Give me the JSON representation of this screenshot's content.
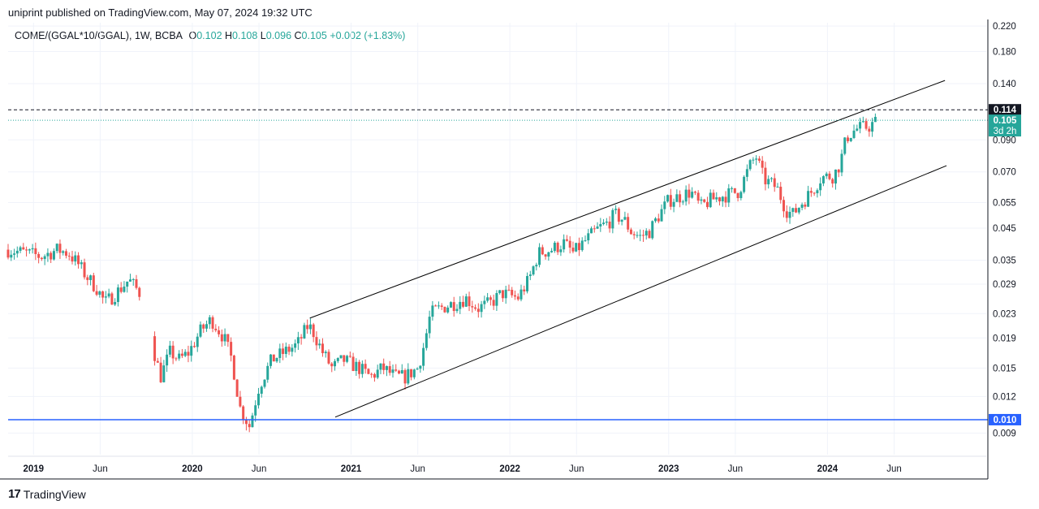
{
  "header": {
    "published_text": "uniprint published on TradingView.com, May 07, 2024 19:32 UTC",
    "symbol": "COME/(GGAL*10/GGAL), 1W, BCBA",
    "o_label": "O",
    "o_value": "0.102",
    "h_label": "H",
    "h_value": "0.108",
    "l_label": "L",
    "l_value": "0.096",
    "c_label": "C",
    "c_value": "0.105",
    "change": "+0.002 (+1.83%)"
  },
  "footer": {
    "brand": "TradingView",
    "logo": "17"
  },
  "colors": {
    "up": "#26a69a",
    "down": "#ef5350",
    "grid": "#f0f3fa",
    "support_line": "#2962ff",
    "channel": "#000000",
    "price_badge": "#26a69a"
  },
  "chart_data": {
    "type": "candlestick",
    "title": "COME/(GGAL*10/GGAL), 1W, BCBA",
    "y_scale": "log",
    "ylim": [
      0.0076,
      0.2258
    ],
    "y_ticks": [
      "0.220",
      "0.180",
      "0.140",
      "0.114",
      "0.105",
      "0.090",
      "0.070",
      "0.055",
      "0.045",
      "0.035",
      "0.029",
      "0.023",
      "0.019",
      "0.015",
      "0.012",
      "0.010",
      "0.009"
    ],
    "y_tick_values": [
      0.22,
      0.18,
      0.14,
      0.114,
      0.105,
      0.09,
      0.07,
      0.055,
      0.045,
      0.035,
      0.029,
      0.023,
      0.019,
      0.015,
      0.012,
      0.01,
      0.009
    ],
    "x_ticks": [
      {
        "label": "2019",
        "t": 2019.0,
        "bold": true
      },
      {
        "label": "Jun",
        "t": 2019.42,
        "bold": false
      },
      {
        "label": "2020",
        "t": 2020.0,
        "bold": true
      },
      {
        "label": "Jun",
        "t": 2020.42,
        "bold": false
      },
      {
        "label": "2021",
        "t": 2021.0,
        "bold": true
      },
      {
        "label": "Jun",
        "t": 2021.42,
        "bold": false
      },
      {
        "label": "2022",
        "t": 2022.0,
        "bold": true
      },
      {
        "label": "Jun",
        "t": 2022.42,
        "bold": false
      },
      {
        "label": "2023",
        "t": 2023.0,
        "bold": true
      },
      {
        "label": "Jun",
        "t": 2023.42,
        "bold": false
      },
      {
        "label": "2024",
        "t": 2024.0,
        "bold": true
      },
      {
        "label": "Jun",
        "t": 2024.42,
        "bold": false
      }
    ],
    "x_range": [
      2018.84,
      2025.0
    ],
    "price_path": [
      [
        2018.84,
        0.038
      ],
      [
        2018.95,
        0.037
      ],
      [
        2019.05,
        0.036
      ],
      [
        2019.15,
        0.038
      ],
      [
        2019.22,
        0.037
      ],
      [
        2019.28,
        0.034
      ],
      [
        2019.33,
        0.031
      ],
      [
        2019.4,
        0.028
      ],
      [
        2019.45,
        0.025
      ],
      [
        2019.52,
        0.027
      ],
      [
        2019.6,
        0.03
      ],
      [
        2019.67,
        0.027
      ],
      [
        2019.76,
        0.017
      ],
      [
        2019.8,
        0.014
      ],
      [
        2019.86,
        0.017
      ],
      [
        2019.92,
        0.016
      ],
      [
        2019.98,
        0.017
      ],
      [
        2020.05,
        0.02
      ],
      [
        2020.12,
        0.022
      ],
      [
        2020.2,
        0.019
      ],
      [
        2020.25,
        0.016
      ],
      [
        2020.3,
        0.011
      ],
      [
        2020.36,
        0.0095
      ],
      [
        2020.42,
        0.013
      ],
      [
        2020.5,
        0.016
      ],
      [
        2020.58,
        0.017
      ],
      [
        2020.66,
        0.018
      ],
      [
        2020.73,
        0.021
      ],
      [
        2020.76,
        0.02
      ],
      [
        2020.82,
        0.017
      ],
      [
        2020.88,
        0.015
      ],
      [
        2020.95,
        0.016
      ],
      [
        2021.05,
        0.015
      ],
      [
        2021.12,
        0.014
      ],
      [
        2021.2,
        0.015
      ],
      [
        2021.28,
        0.014
      ],
      [
        2021.34,
        0.014
      ],
      [
        2021.42,
        0.015
      ],
      [
        2021.46,
        0.018
      ],
      [
        2021.5,
        0.023
      ],
      [
        2021.56,
        0.024
      ],
      [
        2021.65,
        0.025
      ],
      [
        2021.72,
        0.026
      ],
      [
        2021.8,
        0.024
      ],
      [
        2021.88,
        0.025
      ],
      [
        2021.95,
        0.027
      ],
      [
        2022.05,
        0.026
      ],
      [
        2022.12,
        0.03
      ],
      [
        2022.18,
        0.037
      ],
      [
        2022.26,
        0.038
      ],
      [
        2022.34,
        0.04
      ],
      [
        2022.4,
        0.037
      ],
      [
        2022.48,
        0.041
      ],
      [
        2022.56,
        0.045
      ],
      [
        2022.62,
        0.047
      ],
      [
        2022.66,
        0.05
      ],
      [
        2022.72,
        0.048
      ],
      [
        2022.76,
        0.044
      ],
      [
        2022.82,
        0.042
      ],
      [
        2022.88,
        0.044
      ],
      [
        2022.94,
        0.05
      ],
      [
        2023.0,
        0.056
      ],
      [
        2023.08,
        0.058
      ],
      [
        2023.14,
        0.06
      ],
      [
        2023.2,
        0.053
      ],
      [
        2023.26,
        0.056
      ],
      [
        2023.34,
        0.058
      ],
      [
        2023.44,
        0.06
      ],
      [
        2023.52,
        0.075
      ],
      [
        2023.55,
        0.079
      ],
      [
        2023.6,
        0.066
      ],
      [
        2023.68,
        0.062
      ],
      [
        2023.74,
        0.052
      ],
      [
        2023.78,
        0.05
      ],
      [
        2023.84,
        0.055
      ],
      [
        2023.9,
        0.06
      ],
      [
        2023.96,
        0.067
      ],
      [
        2024.04,
        0.068
      ],
      [
        2024.08,
        0.075
      ],
      [
        2024.12,
        0.092
      ],
      [
        2024.18,
        0.098
      ],
      [
        2024.26,
        0.1
      ],
      [
        2024.32,
        0.105
      ]
    ],
    "channel_upper": {
      "p1": [
        2020.74,
        0.0222
      ],
      "p2": [
        2024.74,
        0.1435
      ]
    },
    "channel_lower": {
      "p1": [
        2020.9,
        0.0102
      ],
      "p2": [
        2024.75,
        0.0735
      ]
    },
    "support_level": 0.01,
    "resistance_level": 0.114,
    "last_price": 0.105,
    "last_price_label": "0.105",
    "countdown": "3d 2h",
    "resistance_label": "0.114",
    "support_label": "0.010"
  }
}
